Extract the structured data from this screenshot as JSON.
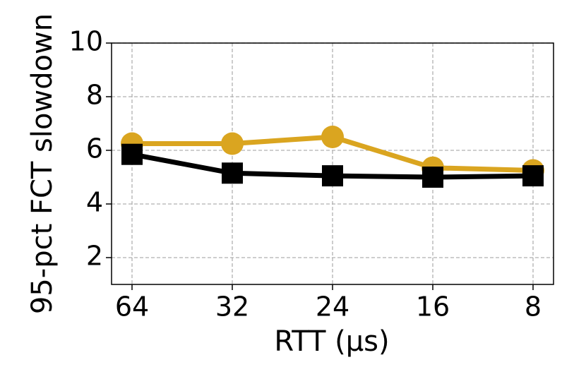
{
  "chart_data": {
    "type": "line",
    "categories": [
      "64",
      "32",
      "24",
      "16",
      "8"
    ],
    "xlabel": "RTT (μs)",
    "ylabel": "95-pct FCT slowdown",
    "ylim": [
      1,
      10
    ],
    "yticks": [
      2,
      4,
      6,
      8,
      10
    ],
    "grid": true,
    "series": [
      {
        "color": "#daa520",
        "marker": "circle",
        "values": [
          6.25,
          6.25,
          6.5,
          5.35,
          5.25
        ]
      },
      {
        "color": "#000000",
        "marker": "square",
        "values": [
          5.85,
          5.15,
          5.05,
          5.0,
          5.05
        ]
      }
    ]
  }
}
